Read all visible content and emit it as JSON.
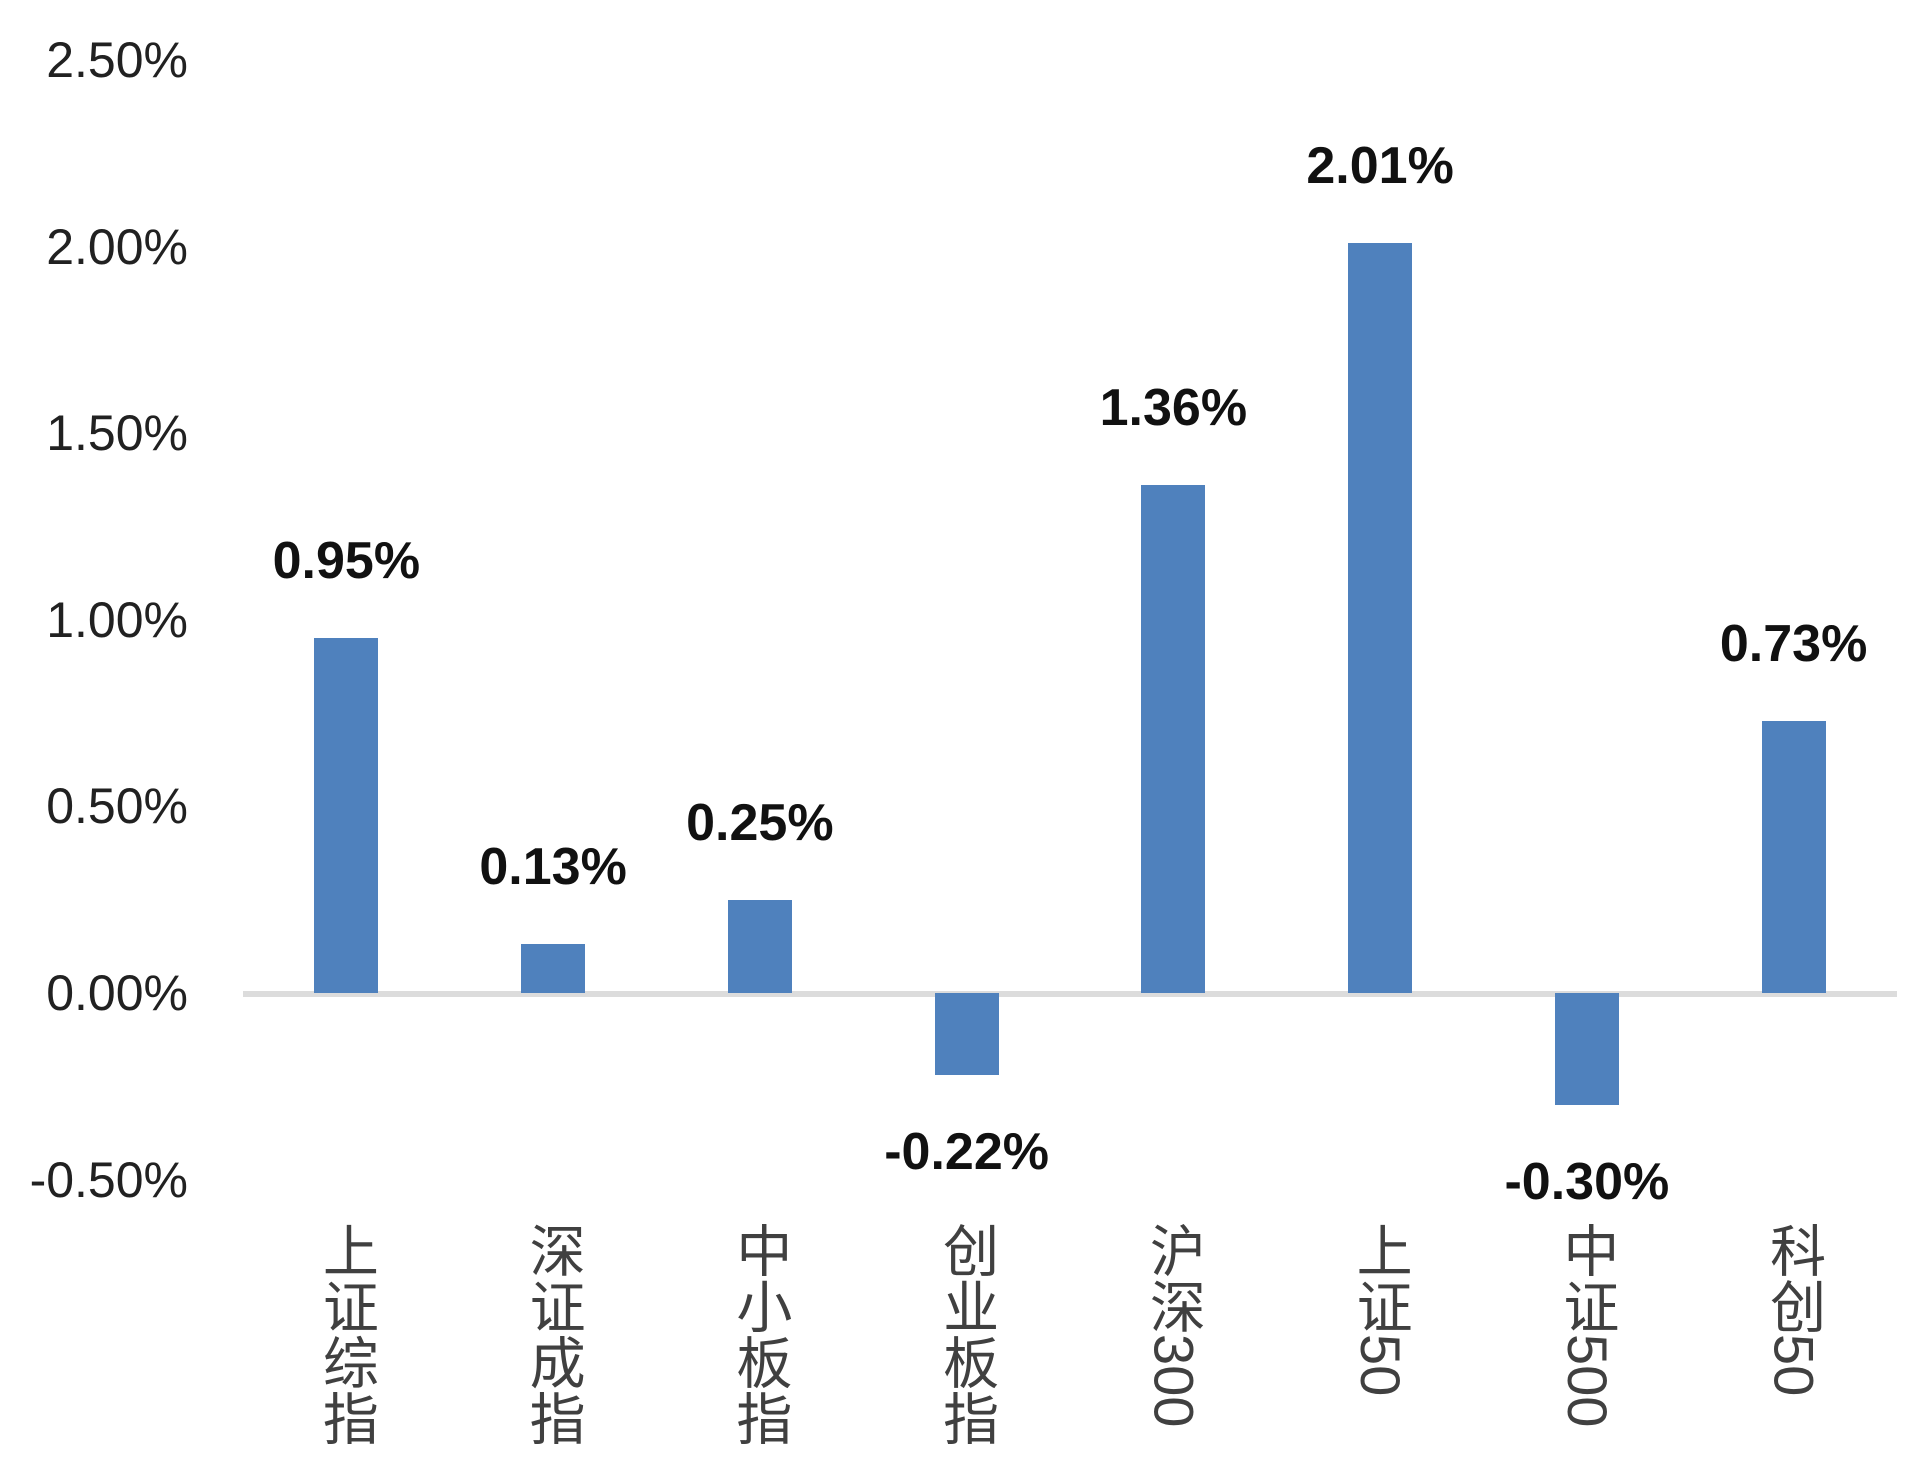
{
  "chart_data": {
    "type": "bar",
    "title": "",
    "xlabel": "",
    "ylabel": "",
    "grid": false,
    "legend": "none",
    "categories": [
      "上证综指",
      "深证成指",
      "中小板指",
      "创业板指",
      "沪深300",
      "上证50",
      "中证500",
      "科创50"
    ],
    "values": [
      0.95,
      0.13,
      0.25,
      -0.22,
      1.36,
      2.01,
      -0.3,
      0.73
    ],
    "data_labels": [
      "0.95%",
      "0.13%",
      "0.25%",
      "-0.22%",
      "1.36%",
      "2.01%",
      "-0.30%",
      "0.73%"
    ],
    "y_ticks": [
      {
        "label": "2.50%",
        "value": 2.5
      },
      {
        "label": "2.00%",
        "value": 2.0
      },
      {
        "label": "1.50%",
        "value": 1.5
      },
      {
        "label": "1.00%",
        "value": 1.0
      },
      {
        "label": "0.50%",
        "value": 0.5
      },
      {
        "label": "0.00%",
        "value": 0.0
      },
      {
        "label": "-0.50%",
        "value": -0.5
      }
    ],
    "ylim": [
      -0.5,
      2.5
    ],
    "bar_color": "#4F81BD",
    "axis_line_color": "#DCDCDC",
    "value_label_color": "#111111",
    "tick_label_color": "#212121",
    "category_label_color": "#404040",
    "background_color": "#FFFFFF"
  }
}
